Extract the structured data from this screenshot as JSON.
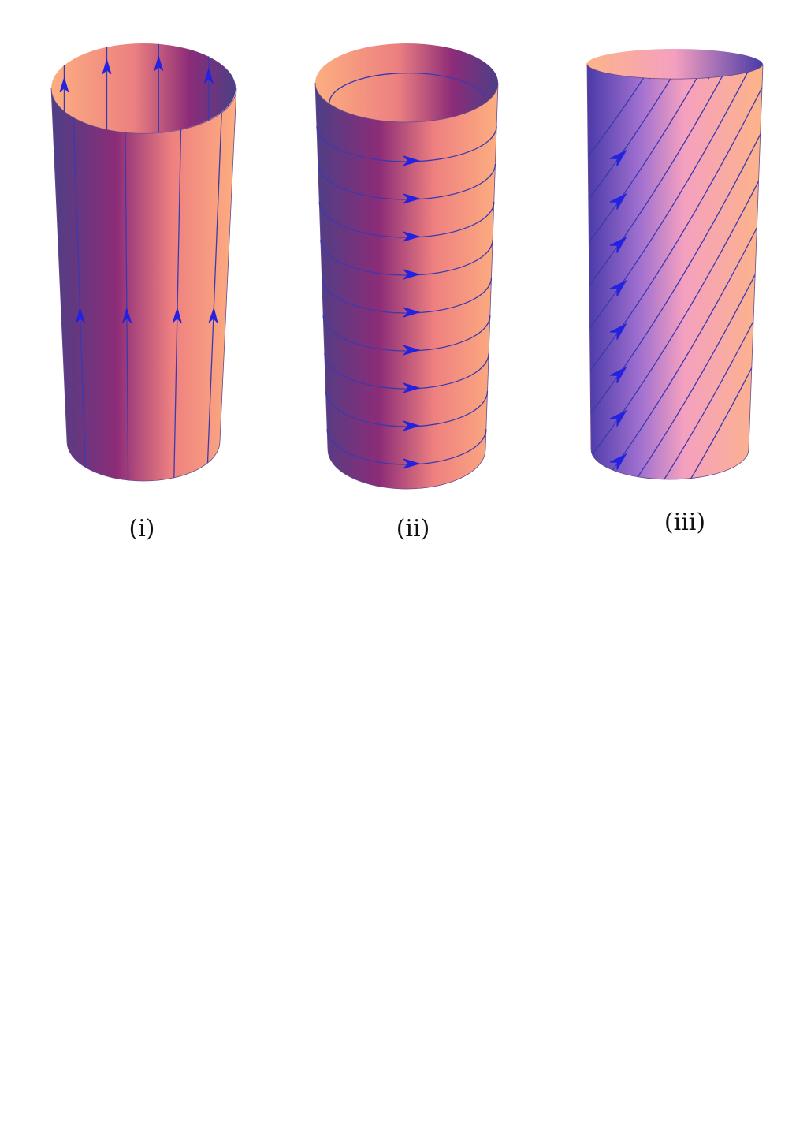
{
  "panels": [
    {
      "label": "(i)"
    },
    {
      "label": "(ii)"
    },
    {
      "label": "(iii)"
    }
  ]
}
